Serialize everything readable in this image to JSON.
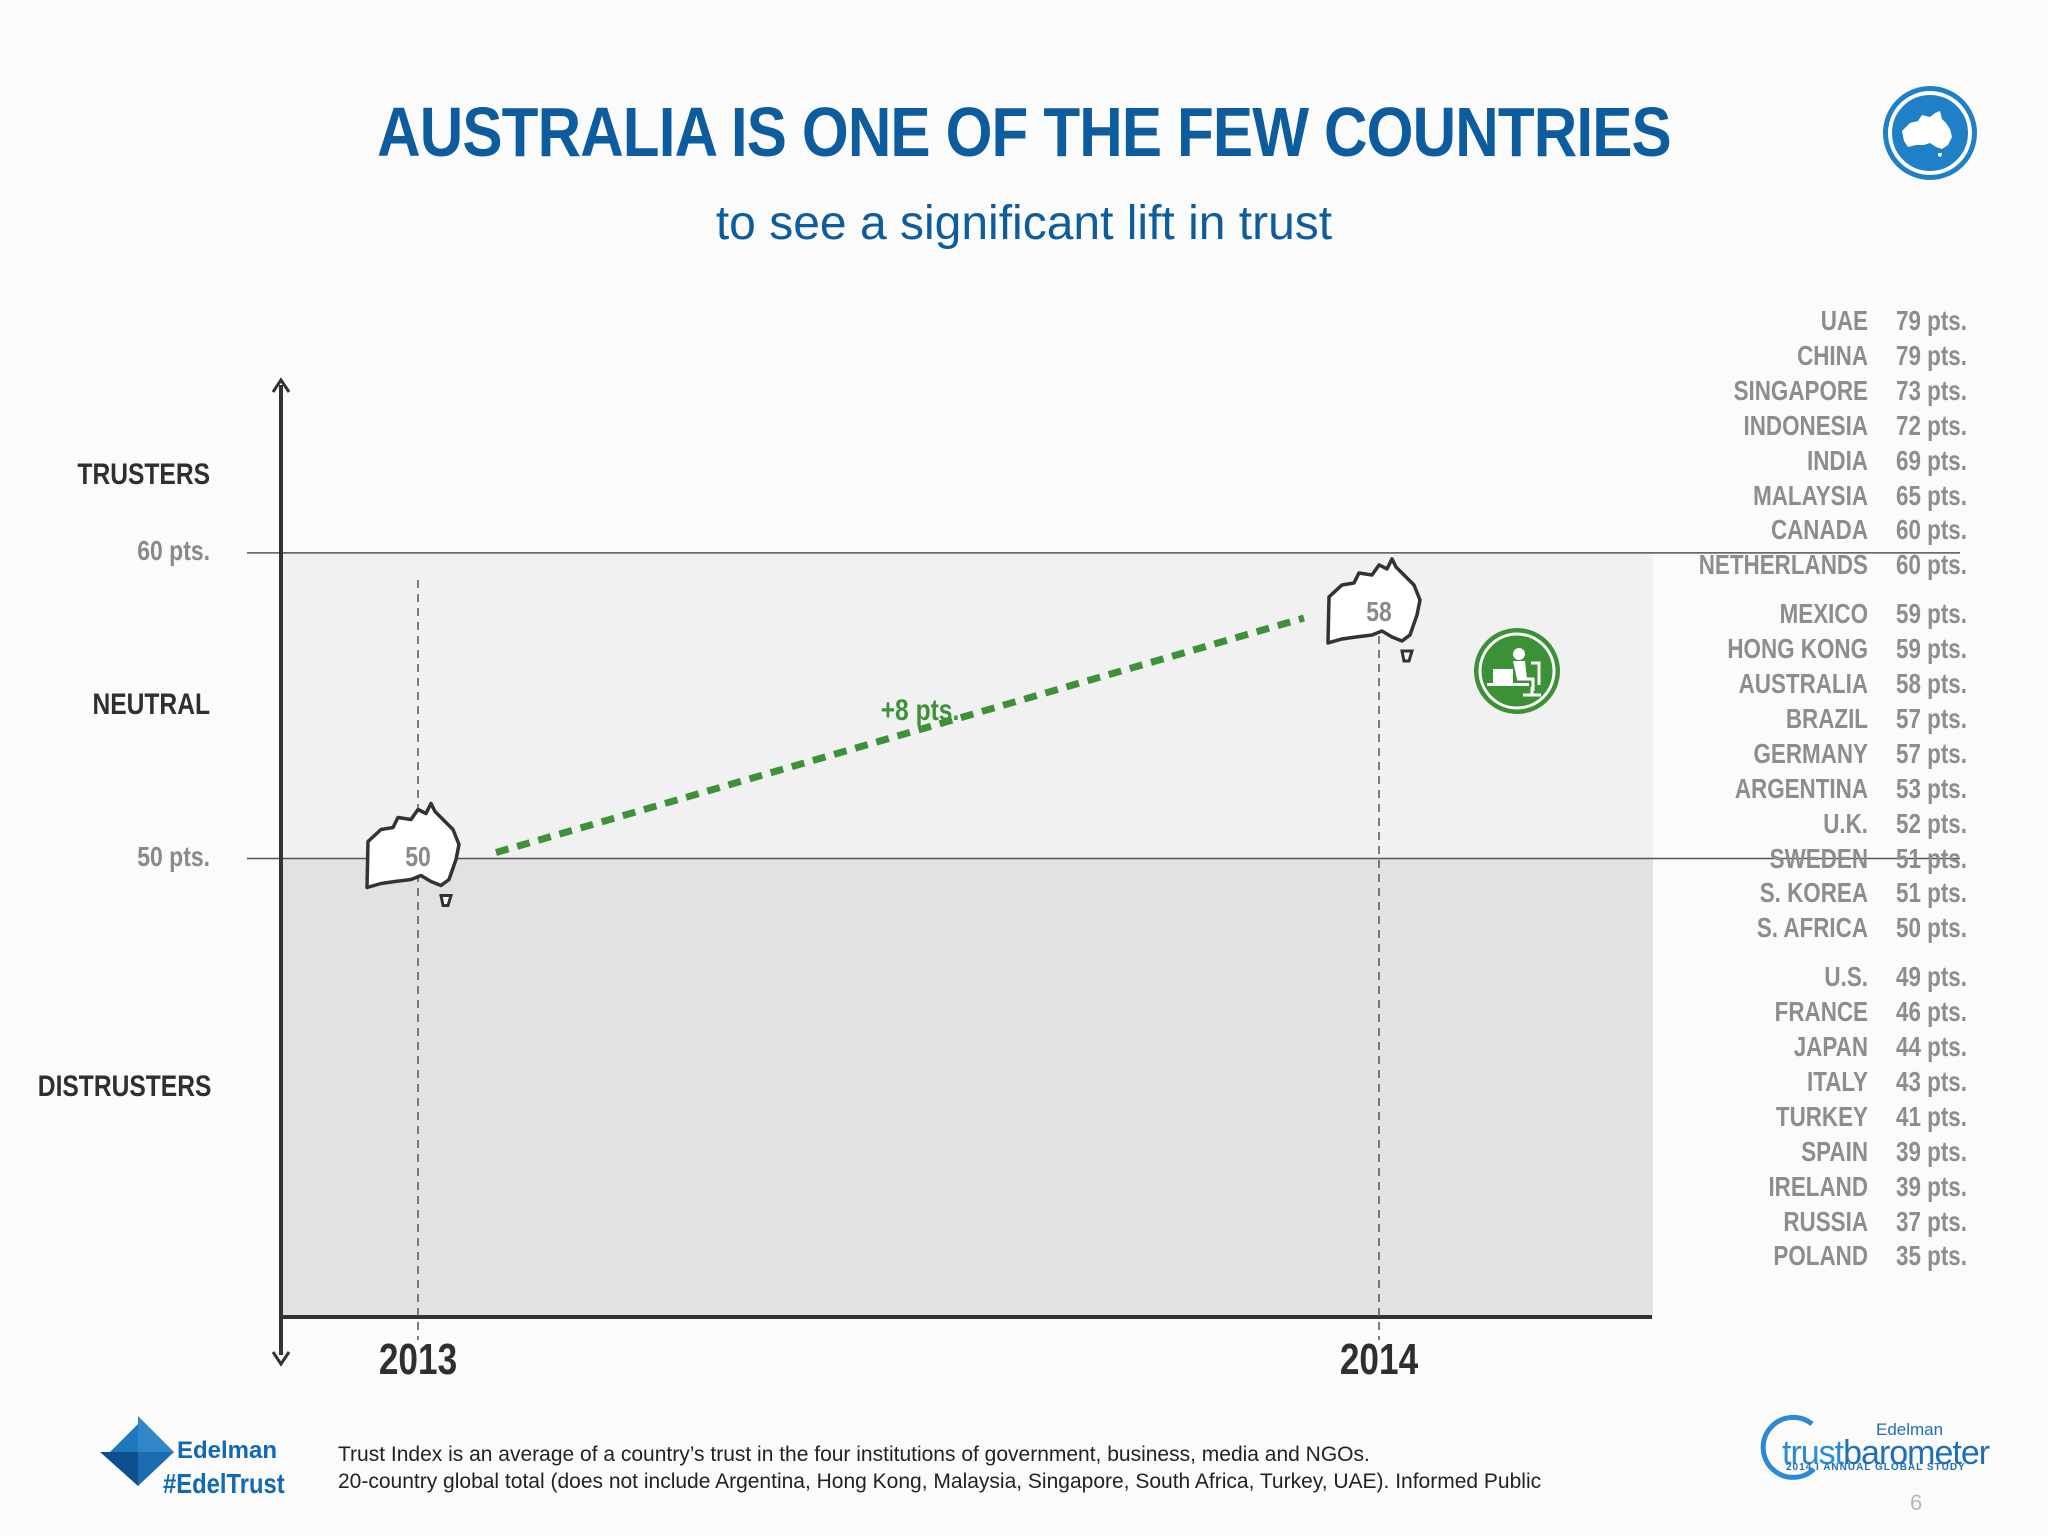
{
  "header": {
    "title": "AUSTRALIA IS ONE OF THE FEW COUNTRIES",
    "subtitle": "to see a significant lift in trust"
  },
  "chart_data": {
    "type": "line",
    "x": [
      "2013",
      "2014"
    ],
    "series": [
      {
        "values": [
          50,
          58
        ]
      }
    ],
    "ylim": [
      35,
      65
    ],
    "zones": [
      {
        "label": "TRUSTERS",
        "from": 60,
        "to": 65
      },
      {
        "label": "NEUTRAL",
        "from": 50,
        "to": 60
      },
      {
        "label": "DISTRUSTERS",
        "from": 35,
        "to": 50
      }
    ],
    "thresholds": [
      {
        "value": 60,
        "label": "60 pts."
      },
      {
        "value": 50,
        "label": "50 pts."
      }
    ],
    "point_labels": [
      "50",
      "58"
    ],
    "change_label": "+8 pts.",
    "colors": {
      "line": "#3f9139",
      "neutral_band": "#f1f1f2",
      "distruster_band": "#e2e2e3",
      "axis": "#333333"
    }
  },
  "ranking": [
    {
      "country": "UAE",
      "pts": "79 pts."
    },
    {
      "country": "CHINA",
      "pts": "79 pts."
    },
    {
      "country": "SINGAPORE",
      "pts": "73 pts."
    },
    {
      "country": "INDONESIA",
      "pts": "72 pts."
    },
    {
      "country": "INDIA",
      "pts": "69 pts."
    },
    {
      "country": "MALAYSIA",
      "pts": "65 pts."
    },
    {
      "country": "CANADA",
      "pts": "60 pts."
    },
    {
      "country": "NETHERLANDS",
      "pts": "60 pts."
    },
    {
      "country": "MEXICO",
      "pts": "59 pts."
    },
    {
      "country": "HONG KONG",
      "pts": "59 pts."
    },
    {
      "country": "AUSTRALIA",
      "pts": "58 pts."
    },
    {
      "country": "BRAZIL",
      "pts": "57 pts."
    },
    {
      "country": "GERMANY",
      "pts": "57 pts."
    },
    {
      "country": "ARGENTINA",
      "pts": "53 pts."
    },
    {
      "country": "U.K.",
      "pts": "52 pts."
    },
    {
      "country": "SWEDEN",
      "pts": "51 pts."
    },
    {
      "country": "S. KOREA",
      "pts": "51 pts."
    },
    {
      "country": "S. AFRICA",
      "pts": "50 pts."
    },
    {
      "country": "U.S.",
      "pts": "49 pts."
    },
    {
      "country": "FRANCE",
      "pts": "46 pts."
    },
    {
      "country": "JAPAN",
      "pts": "44 pts."
    },
    {
      "country": "ITALY",
      "pts": "43 pts."
    },
    {
      "country": "TURKEY",
      "pts": "41 pts."
    },
    {
      "country": "SPAIN",
      "pts": "39 pts."
    },
    {
      "country": "IRELAND",
      "pts": "39 pts."
    },
    {
      "country": "RUSSIA",
      "pts": "37 pts."
    },
    {
      "country": "POLAND",
      "pts": "35 pts."
    }
  ],
  "icons": {
    "badge": "australia-map-icon",
    "worker": "office-worker-icon"
  },
  "footer": {
    "note_line1": "Trust Index is an average of a country’s trust in the four institutions of government, business, media and NGOs.",
    "note_line2": "20-country global total (does not include Argentina, Hong Kong, Malaysia, Singapore, South Africa, Turkey, UAE). Informed Public",
    "edelman_name": "Edelman",
    "edelman_hashtag": "#EdelTrust",
    "tb_brand": "Edelman",
    "tb_name_part1": "trust",
    "tb_name_part2": "barometer",
    "tb_subtitle": "2014 I ANNUAL GLOBAL STUDY",
    "page_number": "6"
  }
}
